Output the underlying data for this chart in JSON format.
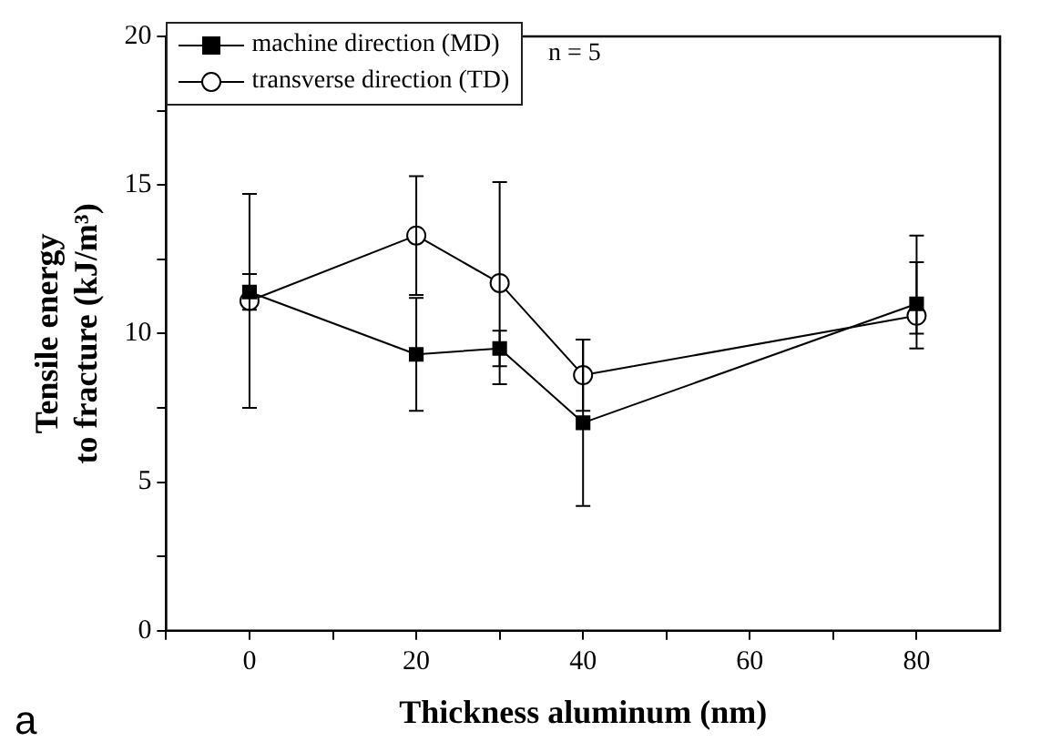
{
  "chart_data": {
    "type": "line",
    "xlabel": "Thickness aluminum (nm)",
    "ylabel": "Tensile energy\nto fracture (kJ/m³)",
    "x": [
      0,
      20,
      30,
      40,
      80
    ],
    "xlim": [
      -10,
      90
    ],
    "xticks": [
      {
        "value": -10,
        "label": null
      },
      0,
      {
        "value": 10,
        "label": null
      },
      20,
      {
        "value": 30,
        "label": null
      },
      40,
      {
        "value": 50,
        "label": null
      },
      60,
      {
        "value": 70,
        "label": null
      },
      80
    ],
    "ylim": [
      0,
      20
    ],
    "yticks": [
      0,
      {
        "value": 2.5,
        "label": null
      },
      5,
      {
        "value": 7.5,
        "label": null
      },
      10,
      {
        "value": 12.5,
        "label": null
      },
      15,
      {
        "value": 17.5,
        "label": null
      },
      20
    ],
    "series": [
      {
        "name": "machine direction (MD)",
        "color": "#000000",
        "marker": "square",
        "values": [
          11.4,
          9.3,
          9.5,
          7.0,
          11.0
        ],
        "errors": [
          [
            10.8,
            12.0
          ],
          [
            7.4,
            11.2
          ],
          [
            8.9,
            10.1
          ],
          [
            4.2,
            9.8
          ],
          [
            9.5,
            12.4
          ]
        ]
      },
      {
        "name": "transverse direction (TD)",
        "color": "#000000",
        "marker": "circle",
        "values": [
          11.1,
          13.3,
          11.7,
          8.6,
          10.6
        ],
        "errors": [
          [
            7.5,
            14.7
          ],
          [
            11.3,
            15.3
          ],
          [
            8.3,
            15.1
          ],
          [
            7.4,
            9.8
          ],
          [
            10.0,
            13.3
          ]
        ]
      }
    ],
    "grid": false,
    "legend": "top left",
    "line_style": "solid",
    "annotations": [
      "n = 5",
      "a"
    ]
  }
}
